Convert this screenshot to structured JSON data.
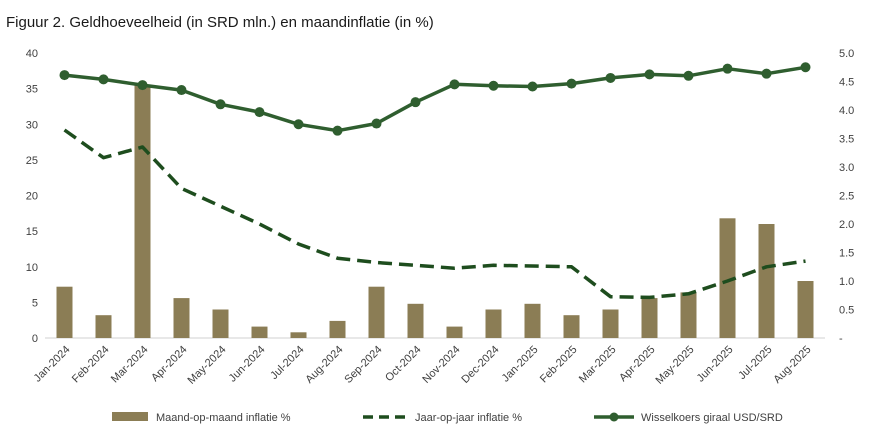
{
  "chart_data": {
    "type": "bar",
    "title": "Figuur 2. Geldhoeveelheid (in SRD mln.) en maandinflatie (in %)",
    "categories": [
      "Jan-2024",
      "Feb-2024",
      "Mar-2024",
      "Apr-2024",
      "May-2024",
      "Jun-2024",
      "Jul-2024",
      "Aug-2024",
      "Sep-2024",
      "Oct-2024",
      "Nov-2024",
      "Dec-2024",
      "Jan-2025",
      "Feb-2025",
      "Mar-2025",
      "Apr-2025",
      "May-2025",
      "Jun-2025",
      "Jul-2025",
      "Aug-2025"
    ],
    "left_axis": {
      "ylim": [
        0,
        40
      ],
      "ticks": [
        "0",
        "5",
        "10",
        "15",
        "20",
        "25",
        "30",
        "35",
        "40"
      ]
    },
    "right_axis": {
      "ylim": [
        0,
        5
      ],
      "ticks": [
        "-",
        "0.5",
        "1.0",
        "1.5",
        "2.0",
        "2.5",
        "3.0",
        "3.5",
        "4.0",
        "4.5",
        "5.0"
      ]
    },
    "series": [
      {
        "name": "Maand-op-maand inflatie %",
        "kind": "bar",
        "axis": "left",
        "color": "#8b7d55",
        "values": [
          7.2,
          3.2,
          35.5,
          5.6,
          4.0,
          1.6,
          0.8,
          2.4,
          7.2,
          4.8,
          1.6,
          4.0,
          4.8,
          3.2,
          4.0,
          5.6,
          6.4,
          16.8,
          16.0,
          8.0
        ]
      },
      {
        "name": "Jaar-op-jaar inflatie %",
        "kind": "dashed-line",
        "axis": "left",
        "color": "#1e4d1e",
        "values": [
          29.2,
          25.3,
          26.8,
          21.0,
          18.5,
          16.0,
          13.2,
          11.2,
          10.6,
          10.2,
          9.8,
          10.2,
          10.1,
          10.0,
          5.8,
          5.7,
          6.2,
          8.0,
          10.0,
          10.8
        ]
      },
      {
        "name": "Wisselkoers giraal USD/SRD",
        "kind": "marker-line",
        "axis": "left",
        "color": "#2f5e2f",
        "values": [
          36.9,
          36.3,
          35.5,
          34.8,
          32.8,
          31.7,
          30.0,
          29.1,
          30.1,
          33.1,
          35.6,
          35.4,
          35.3,
          35.7,
          36.5,
          37.0,
          36.8,
          37.8,
          37.1,
          38.0
        ]
      }
    ]
  }
}
